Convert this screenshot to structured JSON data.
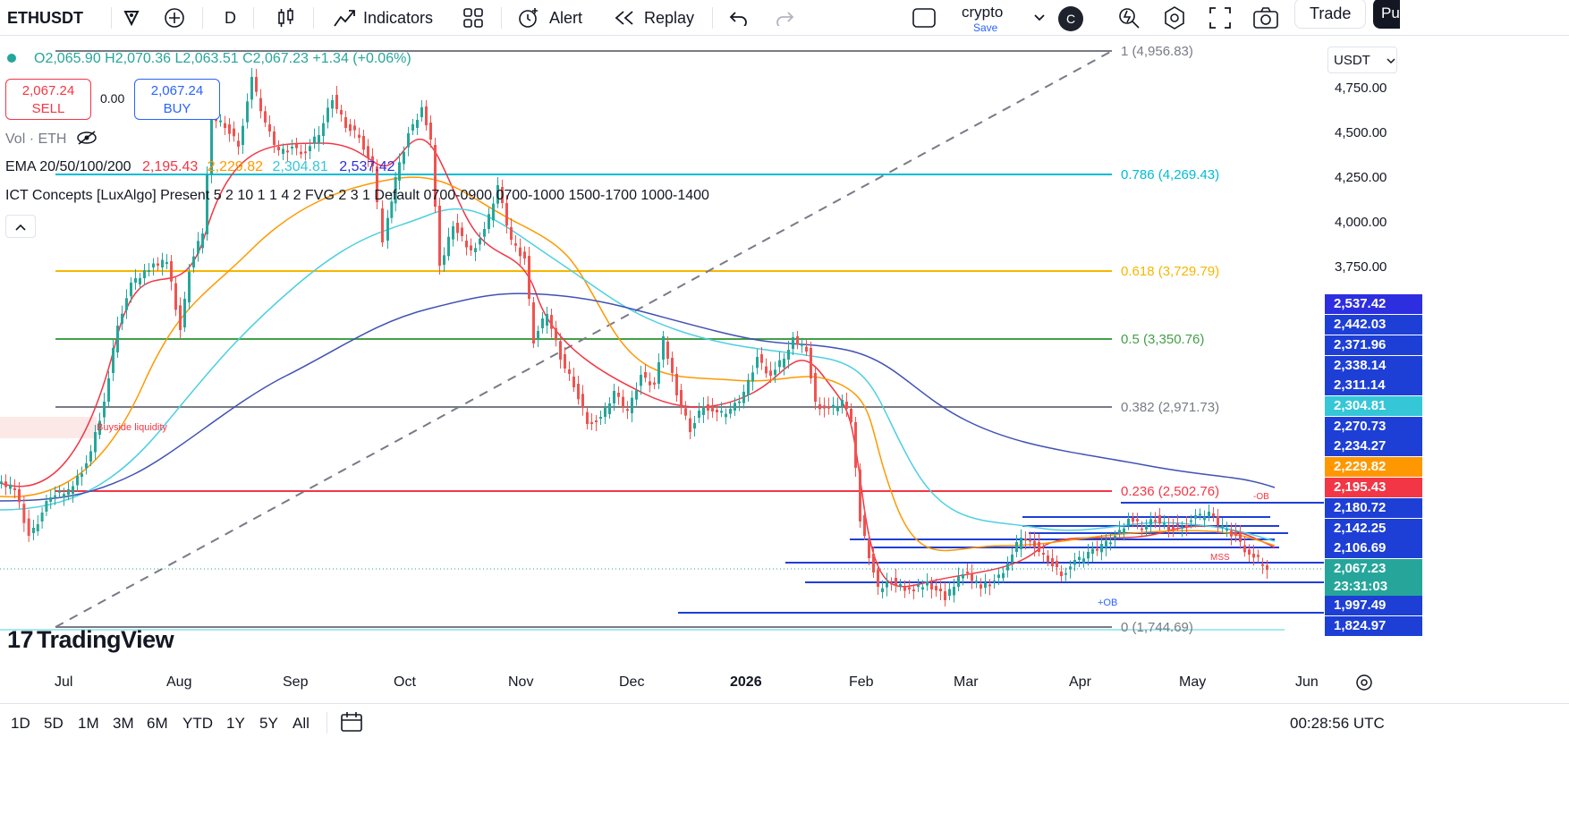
{
  "toolbar": {
    "symbol": "ETHUSDT",
    "interval": "D",
    "indicators": "Indicators",
    "alert": "Alert",
    "replay": "Replay",
    "layout_name": "crypto",
    "layout_save": "Save",
    "avatar": "C",
    "trade": "Trade",
    "publish": "Pu"
  },
  "legend": {
    "ohlc": "O2,065.90 H2,070.36 L2,063.51 C2,067.23 +1.34 (+0.06%)",
    "sell_price": "2,067.24",
    "sell_label": "SELL",
    "spread": "0.00",
    "buy_price": "2,067.24",
    "buy_label": "BUY",
    "volume": "Vol · ETH",
    "ema_name": "EMA 20/50/100/200",
    "ema_values": [
      "2,195.43",
      "2,229.82",
      "2,304.81",
      "2,537.42"
    ],
    "ict": "ICT Concepts [LuxAlgo] Present 5 2 10 1 1 4 2 FVG 2 3 1 Default 0700-0900 0700-1000 1500-1700 1000-1400"
  },
  "colors": {
    "up": "#26a69a",
    "down": "#ef5350",
    "ema20": "#f23645",
    "ema50": "#ff9800",
    "ema100": "#4dd0e1",
    "ema200": "#3f51b5",
    "blue_levels": "#1e3fd6"
  },
  "price_axis": {
    "currency": "USDT",
    "ticks": [
      "4,750.00",
      "4,500.00",
      "4,250.00",
      "4,000.00",
      "3,750.00"
    ],
    "tags": [
      {
        "value": "2,537.42",
        "color": "#2d2ee0"
      },
      {
        "value": "2,442.03",
        "color": "#1e3fd6"
      },
      {
        "value": "2,371.96",
        "color": "#1e3fd6"
      },
      {
        "value": "2,338.14",
        "color": "#1e3fd6"
      },
      {
        "value": "2,311.14",
        "color": "#1e3fd6"
      },
      {
        "value": "2,304.81",
        "color": "#35c6d8"
      },
      {
        "value": "2,270.73",
        "color": "#1e3fd6"
      },
      {
        "value": "2,234.27",
        "color": "#1e3fd6"
      },
      {
        "value": "2,229.82",
        "color": "#ff9800"
      },
      {
        "value": "2,195.43",
        "color": "#f23645"
      },
      {
        "value": "2,180.72",
        "color": "#1e3fd6"
      },
      {
        "value": "2,142.25",
        "color": "#1e3fd6"
      },
      {
        "value": "2,106.69",
        "color": "#1e3fd6"
      },
      {
        "value": "2,067.23",
        "color": "#26a69a"
      },
      {
        "value": "23:31:03",
        "color": "#26a69a"
      },
      {
        "value": "1,997.49",
        "color": "#1e3fd6"
      },
      {
        "value": "1,824.97",
        "color": "#1e3fd6"
      }
    ]
  },
  "fib": [
    {
      "label": "1 (4,956.83)",
      "color": "#787b86"
    },
    {
      "label": "0.786 (4,269.43)",
      "color": "#00bcd4"
    },
    {
      "label": "0.618 (3,729.79)",
      "color": "#f5b700"
    },
    {
      "label": "0.5 (3,350.76)",
      "color": "#43a047"
    },
    {
      "label": "0.382 (2,971.73)",
      "color": "#787b86"
    },
    {
      "label": "0.236 (2,502.76)",
      "color": "#f23645"
    },
    {
      "label": "0 (1,744.69)",
      "color": "#787b86"
    }
  ],
  "annotations": {
    "buyside": "Buyside liquidity",
    "ob_minus": "-OB",
    "ob_plus": "+OB",
    "mss": "MSS"
  },
  "time_axis": [
    "Jul",
    "Aug",
    "Sep",
    "Oct",
    "Nov",
    "Dec",
    "2026",
    "Feb",
    "Mar",
    "Apr",
    "May",
    "Jun"
  ],
  "bottom": {
    "ranges": [
      "1D",
      "5D",
      "1M",
      "3M",
      "6M",
      "YTD",
      "1Y",
      "5Y",
      "All"
    ],
    "clock": "00:28:56 UTC"
  },
  "brand": "TradingView"
}
